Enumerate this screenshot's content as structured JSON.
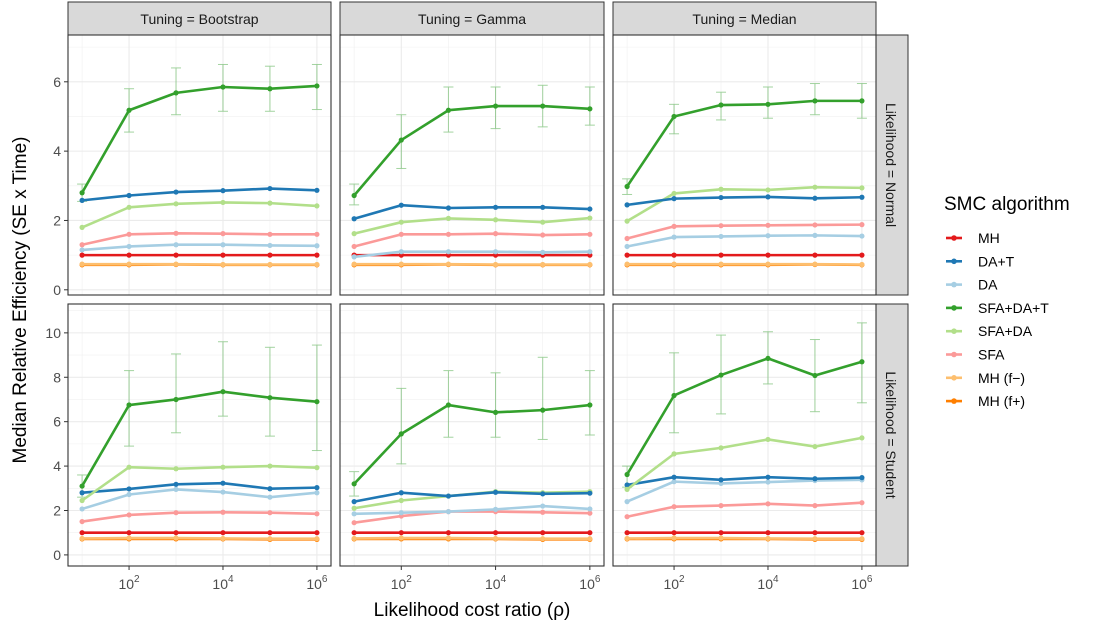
{
  "chart_data": {
    "type": "line",
    "xlabel": "Likelihood cost ratio (ρ)",
    "ylabel": "Median Relative Efficiency (SE x Time)",
    "x_scale": "log10",
    "x": [
      10,
      100,
      1000,
      10000,
      100000,
      1000000
    ],
    "x_ticks": [
      {
        "value": 100,
        "base": "10",
        "exp": "2"
      },
      {
        "value": 10000,
        "base": "10",
        "exp": "4"
      },
      {
        "value": 1000000,
        "base": "10",
        "exp": "6"
      }
    ],
    "grid": true,
    "legend": {
      "title": "SMC algorithm",
      "placement": "right",
      "entries": [
        {
          "name": "MH",
          "color": "#E31A1C"
        },
        {
          "name": "DA+T",
          "color": "#1F78B4"
        },
        {
          "name": "DA",
          "color": "#A6CEE3"
        },
        {
          "name": "SFA+DA+T",
          "color": "#33A02C"
        },
        {
          "name": "SFA+DA",
          "color": "#B2DF8A"
        },
        {
          "name": "SFA",
          "color": "#FB9A99"
        },
        {
          "name": "MH (f−)",
          "color": "#FDBF6F"
        },
        {
          "name": "MH (f+)",
          "color": "#FF7F00"
        }
      ]
    },
    "columns": [
      "Tuning = Bootstrap",
      "Tuning = Gamma",
      "Tuning = Median"
    ],
    "rows": [
      {
        "label": "Likelihood = Normal",
        "ylim": [
          -0.15,
          7.35
        ],
        "yticks": [
          0,
          2,
          4,
          6
        ]
      },
      {
        "label": "Likelihood = Student",
        "ylim": [
          -0.5,
          11.3
        ],
        "yticks": [
          0,
          2,
          4,
          6,
          8,
          10
        ]
      }
    ],
    "panels": [
      {
        "row": 0,
        "col": 0,
        "series": [
          {
            "name": "SFA+DA+T",
            "values": [
              2.8,
              5.18,
              5.68,
              5.85,
              5.8,
              5.88
            ],
            "err_low": [
              2.55,
              4.55,
              5.05,
              5.15,
              5.15,
              5.2
            ],
            "err_high": [
              3.05,
              5.8,
              6.4,
              6.5,
              6.45,
              6.5
            ]
          },
          {
            "name": "DA+T",
            "values": [
              2.58,
              2.72,
              2.82,
              2.86,
              2.92,
              2.87
            ]
          },
          {
            "name": "SFA+DA",
            "values": [
              1.8,
              2.38,
              2.48,
              2.52,
              2.5,
              2.42
            ]
          },
          {
            "name": "SFA",
            "values": [
              1.3,
              1.6,
              1.63,
              1.62,
              1.6,
              1.6
            ]
          },
          {
            "name": "DA",
            "values": [
              1.15,
              1.25,
              1.3,
              1.3,
              1.28,
              1.27
            ]
          },
          {
            "name": "MH",
            "values": [
              1.0,
              1.0,
              1.0,
              1.0,
              1.0,
              1.0
            ]
          },
          {
            "name": "MH (f−)",
            "values": [
              0.74,
              0.74,
              0.74,
              0.73,
              0.73,
              0.73
            ]
          },
          {
            "name": "MH (f+)",
            "values": [
              0.72,
              0.72,
              0.73,
              0.72,
              0.72,
              0.72
            ]
          }
        ]
      },
      {
        "row": 0,
        "col": 1,
        "series": [
          {
            "name": "SFA+DA+T",
            "values": [
              2.72,
              4.32,
              5.18,
              5.3,
              5.3,
              5.22
            ],
            "err_low": [
              2.45,
              3.5,
              4.55,
              4.65,
              4.7,
              4.75
            ],
            "err_high": [
              3.05,
              5.05,
              5.85,
              5.85,
              5.9,
              5.85
            ]
          },
          {
            "name": "DA+T",
            "values": [
              2.05,
              2.44,
              2.36,
              2.38,
              2.38,
              2.33
            ]
          },
          {
            "name": "SFA+DA",
            "values": [
              1.62,
              1.95,
              2.06,
              2.02,
              1.95,
              2.07
            ]
          },
          {
            "name": "SFA",
            "values": [
              1.25,
              1.6,
              1.6,
              1.62,
              1.58,
              1.6
            ]
          },
          {
            "name": "DA",
            "values": [
              0.95,
              1.1,
              1.1,
              1.1,
              1.08,
              1.1
            ]
          },
          {
            "name": "MH",
            "values": [
              1.0,
              1.0,
              1.0,
              1.0,
              1.0,
              1.0
            ]
          },
          {
            "name": "MH (f−)",
            "values": [
              0.74,
              0.74,
              0.74,
              0.73,
              0.73,
              0.73
            ]
          },
          {
            "name": "MH (f+)",
            "values": [
              0.72,
              0.72,
              0.73,
              0.72,
              0.72,
              0.72
            ]
          }
        ]
      },
      {
        "row": 0,
        "col": 2,
        "series": [
          {
            "name": "SFA+DA+T",
            "values": [
              2.98,
              5.0,
              5.33,
              5.35,
              5.45,
              5.45
            ],
            "err_low": [
              2.75,
              4.5,
              4.9,
              4.95,
              5.05,
              4.95
            ],
            "err_high": [
              3.2,
              5.35,
              5.7,
              5.85,
              5.95,
              5.95
            ]
          },
          {
            "name": "DA+T",
            "values": [
              2.45,
              2.63,
              2.66,
              2.68,
              2.64,
              2.67
            ]
          },
          {
            "name": "SFA+DA",
            "values": [
              1.98,
              2.78,
              2.9,
              2.88,
              2.96,
              2.94
            ]
          },
          {
            "name": "SFA",
            "values": [
              1.48,
              1.83,
              1.85,
              1.86,
              1.87,
              1.88
            ]
          },
          {
            "name": "DA",
            "values": [
              1.25,
              1.52,
              1.54,
              1.56,
              1.57,
              1.55
            ]
          },
          {
            "name": "MH",
            "values": [
              1.0,
              1.0,
              1.0,
              1.0,
              1.0,
              1.0
            ]
          },
          {
            "name": "MH (f−)",
            "values": [
              0.74,
              0.74,
              0.74,
              0.74,
              0.74,
              0.73
            ]
          },
          {
            "name": "MH (f+)",
            "values": [
              0.72,
              0.72,
              0.72,
              0.72,
              0.73,
              0.72
            ]
          }
        ]
      },
      {
        "row": 1,
        "col": 0,
        "series": [
          {
            "name": "SFA+DA+T",
            "values": [
              3.1,
              6.75,
              7.0,
              7.35,
              7.08,
              6.9
            ],
            "err_low": [
              2.6,
              4.9,
              5.5,
              6.25,
              5.35,
              4.7
            ],
            "err_high": [
              3.6,
              8.3,
              9.05,
              9.6,
              9.35,
              9.45
            ]
          },
          {
            "name": "SFA+DA",
            "values": [
              2.45,
              3.95,
              3.88,
              3.95,
              4.0,
              3.93
            ]
          },
          {
            "name": "DA+T",
            "values": [
              2.8,
              2.97,
              3.18,
              3.23,
              2.98,
              3.03
            ]
          },
          {
            "name": "DA",
            "values": [
              2.07,
              2.72,
              2.95,
              2.83,
              2.6,
              2.8
            ]
          },
          {
            "name": "SFA",
            "values": [
              1.5,
              1.8,
              1.9,
              1.92,
              1.9,
              1.85
            ]
          },
          {
            "name": "MH",
            "values": [
              1.0,
              1.0,
              1.0,
              1.0,
              1.0,
              1.0
            ]
          },
          {
            "name": "MH (f−)",
            "values": [
              0.74,
              0.76,
              0.76,
              0.74,
              0.73,
              0.73
            ]
          },
          {
            "name": "MH (f+)",
            "values": [
              0.72,
              0.72,
              0.72,
              0.72,
              0.7,
              0.7
            ]
          }
        ]
      },
      {
        "row": 1,
        "col": 1,
        "series": [
          {
            "name": "SFA+DA+T",
            "values": [
              3.2,
              5.45,
              6.75,
              6.42,
              6.52,
              6.75
            ],
            "err_low": [
              2.65,
              4.1,
              5.3,
              5.3,
              5.2,
              5.4
            ],
            "err_high": [
              3.75,
              7.5,
              8.3,
              8.2,
              8.9,
              8.3
            ]
          },
          {
            "name": "DA+T",
            "values": [
              2.4,
              2.8,
              2.65,
              2.82,
              2.75,
              2.78
            ]
          },
          {
            "name": "SFA+DA",
            "values": [
              2.1,
              2.45,
              2.65,
              2.85,
              2.8,
              2.85
            ]
          },
          {
            "name": "DA",
            "values": [
              1.85,
              1.9,
              1.95,
              2.05,
              2.2,
              2.07
            ]
          },
          {
            "name": "SFA",
            "values": [
              1.45,
              1.75,
              1.95,
              1.95,
              1.92,
              1.88
            ]
          },
          {
            "name": "MH",
            "values": [
              1.0,
              1.0,
              1.0,
              1.0,
              1.0,
              1.0
            ]
          },
          {
            "name": "MH (f−)",
            "values": [
              0.74,
              0.76,
              0.76,
              0.74,
              0.73,
              0.73
            ]
          },
          {
            "name": "MH (f+)",
            "values": [
              0.72,
              0.72,
              0.72,
              0.72,
              0.7,
              0.7
            ]
          }
        ]
      },
      {
        "row": 1,
        "col": 2,
        "series": [
          {
            "name": "SFA+DA+T",
            "values": [
              3.62,
              7.18,
              8.1,
              8.85,
              8.08,
              8.7
            ],
            "err_low": [
              3.05,
              5.5,
              6.35,
              7.7,
              6.45,
              6.85
            ],
            "err_high": [
              4.0,
              9.1,
              9.9,
              10.05,
              9.7,
              10.45
            ]
          },
          {
            "name": "SFA+DA",
            "values": [
              2.95,
              4.55,
              4.82,
              5.2,
              4.88,
              5.27
            ]
          },
          {
            "name": "DA+T",
            "values": [
              3.15,
              3.5,
              3.38,
              3.5,
              3.43,
              3.48
            ]
          },
          {
            "name": "DA",
            "values": [
              2.4,
              3.3,
              3.22,
              3.28,
              3.35,
              3.38
            ]
          },
          {
            "name": "SFA",
            "values": [
              1.72,
              2.17,
              2.22,
              2.3,
              2.22,
              2.35
            ]
          },
          {
            "name": "MH",
            "values": [
              1.0,
              1.0,
              1.0,
              1.0,
              1.0,
              1.0
            ]
          },
          {
            "name": "MH (f−)",
            "values": [
              0.74,
              0.76,
              0.76,
              0.74,
              0.73,
              0.73
            ]
          },
          {
            "name": "MH (f+)",
            "values": [
              0.72,
              0.72,
              0.72,
              0.72,
              0.7,
              0.7
            ]
          }
        ]
      }
    ]
  }
}
